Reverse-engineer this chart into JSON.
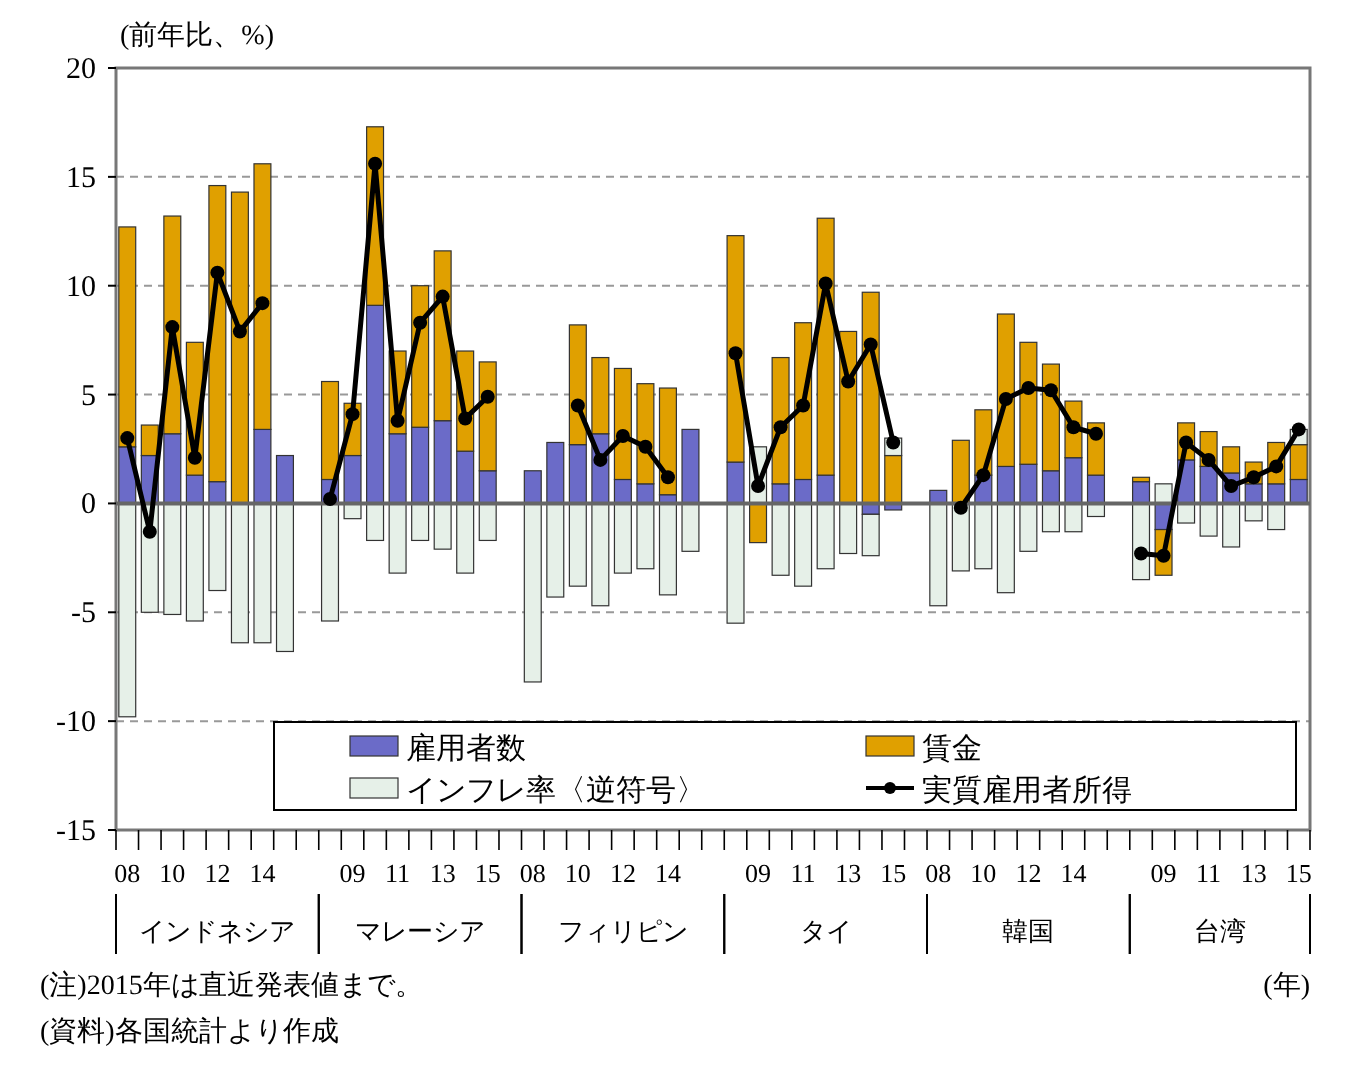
{
  "chart_data": {
    "type": "bar",
    "stacked": true,
    "ylabel": "(前年比、%)",
    "categories": [
      "08",
      null,
      "10",
      null,
      "12",
      null,
      "14",
      null,
      null,
      null,
      "09",
      null,
      "11",
      null,
      "13",
      null,
      "15",
      null,
      "08",
      null,
      "10",
      null,
      "12",
      null,
      "14",
      null,
      null,
      null,
      "09",
      null,
      "11",
      null,
      "13",
      null,
      "15",
      null,
      "08",
      null,
      "10",
      null,
      "12",
      null,
      "14",
      null,
      null,
      null,
      "09",
      null,
      "11",
      null,
      "13",
      null,
      "15"
    ],
    "series": [
      {
        "name": "雇用者数",
        "color": "#6b6bc8",
        "values": [
          2.6,
          2.2,
          3.2,
          1.3,
          1.0,
          0.0,
          3.4,
          2.2,
          null,
          1.1,
          2.2,
          9.1,
          3.2,
          3.5,
          3.8,
          2.4,
          1.5,
          null,
          1.5,
          2.8,
          2.7,
          3.2,
          1.1,
          0.9,
          0.4,
          3.4,
          null,
          1.9,
          0.0,
          0.9,
          1.1,
          1.3,
          0.0,
          -0.5,
          -0.3,
          null,
          0.6,
          0.0,
          1.3,
          1.7,
          1.8,
          1.5,
          2.1,
          1.3,
          null,
          1.0,
          -1.2,
          2.0,
          1.7,
          1.4,
          0.9,
          0.9,
          1.1
        ]
      },
      {
        "name": "賃金",
        "color": "#e0a000",
        "values": [
          10.1,
          1.4,
          10.0,
          6.1,
          13.6,
          14.3,
          12.2,
          null,
          null,
          4.5,
          2.4,
          8.2,
          3.8,
          6.5,
          7.8,
          4.6,
          5.0,
          null,
          null,
          null,
          5.5,
          3.5,
          5.1,
          4.6,
          4.9,
          null,
          null,
          10.4,
          -1.8,
          5.8,
          7.2,
          11.8,
          7.9,
          9.7,
          2.2,
          null,
          null,
          2.9,
          3.0,
          7.0,
          5.6,
          4.9,
          2.6,
          2.4,
          null,
          0.2,
          -2.1,
          1.7,
          1.6,
          1.2,
          1.0,
          1.9,
          1.6
        ]
      },
      {
        "name": "インフレ率〈逆符号〉",
        "color": "#e6f0e8",
        "values": [
          -9.8,
          -5.0,
          -5.1,
          -5.4,
          -4.0,
          -6.4,
          -6.4,
          -6.8,
          null,
          -5.4,
          -0.7,
          -1.7,
          -3.2,
          -1.7,
          -2.1,
          -3.2,
          -1.7,
          null,
          -8.2,
          -4.3,
          -3.8,
          -4.7,
          -3.2,
          -3.0,
          -4.2,
          -2.2,
          null,
          -5.5,
          2.6,
          -3.3,
          -3.8,
          -3.0,
          -2.3,
          -1.9,
          0.8,
          null,
          -4.7,
          -3.1,
          -3.0,
          -4.1,
          -2.2,
          -1.3,
          -1.3,
          -0.6,
          null,
          -3.5,
          0.9,
          -0.9,
          -1.5,
          -2.0,
          -0.8,
          -1.2,
          0.7
        ]
      },
      {
        "name": "実質雇用者所得",
        "type": "line",
        "color": "#000000",
        "marker": "circle",
        "values": [
          3.0,
          -1.3,
          8.1,
          2.1,
          10.6,
          7.9,
          9.2,
          null,
          null,
          0.2,
          4.1,
          15.6,
          3.8,
          8.3,
          9.5,
          3.9,
          4.9,
          null,
          null,
          null,
          4.5,
          2.0,
          3.1,
          2.6,
          1.2,
          null,
          null,
          6.9,
          0.8,
          3.5,
          4.5,
          10.1,
          5.6,
          7.3,
          2.8,
          null,
          null,
          -0.2,
          1.3,
          4.8,
          5.3,
          5.2,
          3.5,
          3.2,
          null,
          -2.3,
          -2.4,
          2.8,
          2.0,
          0.8,
          1.2,
          1.7,
          3.4
        ]
      }
    ],
    "ylim": [
      -15,
      20
    ],
    "yticks": [
      -15,
      -10,
      -5,
      0,
      5,
      10,
      15,
      20
    ],
    "grid": "y",
    "legend": "bottom",
    "annotations": [
      "インドネシア",
      "マレーシア",
      "フィリピン",
      "タイ",
      "韓国",
      "台湾",
      "(注)2015年は直近発表値まで。",
      "(年)",
      "(資料)各国統計より作成"
    ]
  }
}
